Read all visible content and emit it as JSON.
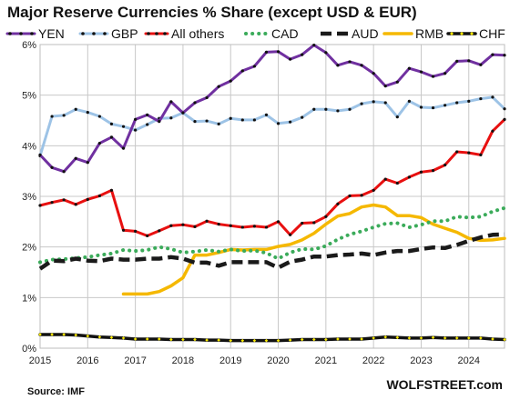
{
  "chart_data": {
    "type": "line",
    "title": "Major Reserve Currencies % Share (except USD & EUR)",
    "source": "Source: IMF",
    "brand": "WOLFSTREET.com",
    "xlabel": "",
    "ylabel": "",
    "xlim": [
      2015.0,
      2024.75
    ],
    "ylim": [
      0,
      6
    ],
    "yticks": [
      0,
      1,
      2,
      3,
      4,
      5,
      6
    ],
    "ytick_labels": [
      "0%",
      "1%",
      "2%",
      "3%",
      "4%",
      "5%",
      "6%"
    ],
    "xticks": [
      2015,
      2016,
      2017,
      2018,
      2019,
      2020,
      2021,
      2022,
      2023,
      2024
    ],
    "xtick_labels": [
      "2015",
      "2016",
      "2017",
      "2018",
      "2019",
      "2020",
      "2021",
      "2022",
      "2023",
      "2024"
    ],
    "grid": true,
    "legend_position": "top",
    "series": [
      {
        "name": "YEN",
        "color": "#7030a0",
        "dash": "solid",
        "marker": "dot",
        "x": [
          2015.0,
          2015.25,
          2015.5,
          2015.75,
          2016.0,
          2016.25,
          2016.5,
          2016.75,
          2017.0,
          2017.25,
          2017.5,
          2017.75,
          2018.0,
          2018.25,
          2018.5,
          2018.75,
          2019.0,
          2019.25,
          2019.5,
          2019.75,
          2020.0,
          2020.25,
          2020.5,
          2020.75,
          2021.0,
          2021.25,
          2021.5,
          2021.75,
          2022.0,
          2022.25,
          2022.5,
          2022.75,
          2023.0,
          2023.25,
          2023.5,
          2023.75,
          2024.0,
          2024.25,
          2024.5,
          2024.75
        ],
        "y": [
          3.82,
          3.57,
          3.49,
          3.75,
          3.67,
          4.05,
          4.17,
          3.95,
          4.52,
          4.61,
          4.48,
          4.87,
          4.65,
          4.85,
          4.95,
          5.17,
          5.28,
          5.48,
          5.57,
          5.85,
          5.86,
          5.71,
          5.8,
          5.99,
          5.84,
          5.59,
          5.66,
          5.59,
          5.43,
          5.18,
          5.26,
          5.53,
          5.46,
          5.37,
          5.43,
          5.67,
          5.68,
          5.6,
          5.8,
          5.79
        ]
      },
      {
        "name": "GBP",
        "color": "#9dc3e6",
        "dash": "solid",
        "marker": "dot",
        "x": [
          2015.0,
          2015.25,
          2015.5,
          2015.75,
          2016.0,
          2016.25,
          2016.5,
          2016.75,
          2017.0,
          2017.25,
          2017.5,
          2017.75,
          2018.0,
          2018.25,
          2018.5,
          2018.75,
          2019.0,
          2019.25,
          2019.5,
          2019.75,
          2020.0,
          2020.25,
          2020.5,
          2020.75,
          2021.0,
          2021.25,
          2021.5,
          2021.75,
          2022.0,
          2022.25,
          2022.5,
          2022.75,
          2023.0,
          2023.25,
          2023.5,
          2023.75,
          2024.0,
          2024.25,
          2024.5,
          2024.75
        ],
        "y": [
          3.8,
          4.58,
          4.6,
          4.72,
          4.66,
          4.58,
          4.43,
          4.38,
          4.31,
          4.42,
          4.54,
          4.55,
          4.65,
          4.48,
          4.49,
          4.43,
          4.54,
          4.51,
          4.51,
          4.61,
          4.44,
          4.47,
          4.56,
          4.72,
          4.72,
          4.69,
          4.72,
          4.83,
          4.87,
          4.85,
          4.57,
          4.88,
          4.76,
          4.75,
          4.8,
          4.85,
          4.88,
          4.93,
          4.96,
          4.73
        ]
      },
      {
        "name": "All others",
        "color": "#e81010",
        "dash": "solid",
        "marker": "dot",
        "x": [
          2015.0,
          2015.25,
          2015.5,
          2015.75,
          2016.0,
          2016.25,
          2016.5,
          2016.75,
          2017.0,
          2017.25,
          2017.5,
          2017.75,
          2018.0,
          2018.25,
          2018.5,
          2018.75,
          2019.0,
          2019.25,
          2019.5,
          2019.75,
          2020.0,
          2020.25,
          2020.5,
          2020.75,
          2021.0,
          2021.25,
          2021.5,
          2021.75,
          2022.0,
          2022.25,
          2022.5,
          2022.75,
          2023.0,
          2023.25,
          2023.5,
          2023.75,
          2024.0,
          2024.25,
          2024.5,
          2024.75
        ],
        "y": [
          2.82,
          2.88,
          2.93,
          2.84,
          2.94,
          3.01,
          3.12,
          2.33,
          2.31,
          2.22,
          2.32,
          2.42,
          2.44,
          2.4,
          2.51,
          2.45,
          2.42,
          2.39,
          2.41,
          2.39,
          2.5,
          2.24,
          2.47,
          2.48,
          2.6,
          2.85,
          3.01,
          3.02,
          3.12,
          3.34,
          3.26,
          3.38,
          3.48,
          3.51,
          3.62,
          3.88,
          3.86,
          3.82,
          4.29,
          4.52
        ]
      },
      {
        "name": "CAD",
        "color": "#3bab5a",
        "dash": "dotted",
        "marker": "none",
        "x": [
          2015.0,
          2015.25,
          2015.5,
          2015.75,
          2016.0,
          2016.25,
          2016.5,
          2016.75,
          2017.0,
          2017.25,
          2017.5,
          2017.75,
          2018.0,
          2018.25,
          2018.5,
          2018.75,
          2019.0,
          2019.25,
          2019.5,
          2019.75,
          2020.0,
          2020.25,
          2020.5,
          2020.75,
          2021.0,
          2021.25,
          2021.5,
          2021.75,
          2022.0,
          2022.25,
          2022.5,
          2022.75,
          2023.0,
          2023.25,
          2023.5,
          2023.75,
          2024.0,
          2024.25,
          2024.5,
          2024.75
        ],
        "y": [
          1.7,
          1.75,
          1.76,
          1.78,
          1.8,
          1.84,
          1.87,
          1.94,
          1.92,
          1.94,
          2.0,
          1.96,
          1.89,
          1.91,
          1.94,
          1.91,
          1.95,
          1.92,
          1.93,
          1.88,
          1.77,
          1.89,
          1.96,
          1.95,
          2.02,
          2.15,
          2.25,
          2.31,
          2.39,
          2.46,
          2.47,
          2.39,
          2.44,
          2.51,
          2.51,
          2.6,
          2.58,
          2.6,
          2.7,
          2.77
        ]
      },
      {
        "name": "AUD",
        "color": "#1a1a1a",
        "dash": "dashed",
        "marker": "none",
        "x": [
          2015.0,
          2015.25,
          2015.5,
          2015.75,
          2016.0,
          2016.25,
          2016.5,
          2016.75,
          2017.0,
          2017.25,
          2017.5,
          2017.75,
          2018.0,
          2018.25,
          2018.5,
          2018.75,
          2019.0,
          2019.25,
          2019.5,
          2019.75,
          2020.0,
          2020.25,
          2020.5,
          2020.75,
          2021.0,
          2021.25,
          2021.5,
          2021.75,
          2022.0,
          2022.25,
          2022.5,
          2022.75,
          2023.0,
          2023.25,
          2023.5,
          2023.75,
          2024.0,
          2024.25,
          2024.5,
          2024.75
        ],
        "y": [
          1.57,
          1.73,
          1.72,
          1.77,
          1.73,
          1.72,
          1.77,
          1.75,
          1.75,
          1.77,
          1.77,
          1.8,
          1.77,
          1.69,
          1.69,
          1.63,
          1.7,
          1.7,
          1.7,
          1.7,
          1.59,
          1.71,
          1.75,
          1.81,
          1.81,
          1.84,
          1.85,
          1.87,
          1.84,
          1.89,
          1.92,
          1.92,
          1.96,
          1.99,
          1.98,
          2.04,
          2.12,
          2.19,
          2.24,
          2.25
        ]
      },
      {
        "name": "RMB",
        "color": "#f5b800",
        "dash": "solid",
        "marker": "none",
        "x": [
          2016.75,
          2017.0,
          2017.25,
          2017.5,
          2017.75,
          2018.0,
          2018.25,
          2018.5,
          2018.75,
          2019.0,
          2019.25,
          2019.5,
          2019.75,
          2020.0,
          2020.25,
          2020.5,
          2020.75,
          2021.0,
          2021.25,
          2021.5,
          2021.75,
          2022.0,
          2022.25,
          2022.5,
          2022.75,
          2023.0,
          2023.25,
          2023.5,
          2023.75,
          2024.0,
          2024.25,
          2024.5,
          2024.75
        ],
        "y": [
          1.07,
          1.07,
          1.07,
          1.12,
          1.23,
          1.39,
          1.84,
          1.84,
          1.89,
          1.95,
          1.94,
          1.95,
          1.95,
          2.01,
          2.05,
          2.14,
          2.27,
          2.45,
          2.61,
          2.66,
          2.79,
          2.83,
          2.79,
          2.62,
          2.62,
          2.58,
          2.45,
          2.37,
          2.29,
          2.17,
          2.13,
          2.14,
          2.17
        ]
      },
      {
        "name": "CHF",
        "color": "#111111",
        "dash": "solid",
        "marker": "diamond-yellow",
        "x": [
          2015.0,
          2015.25,
          2015.5,
          2015.75,
          2016.0,
          2016.25,
          2016.5,
          2016.75,
          2017.0,
          2017.25,
          2017.5,
          2017.75,
          2018.0,
          2018.25,
          2018.5,
          2018.75,
          2019.0,
          2019.25,
          2019.5,
          2019.75,
          2020.0,
          2020.25,
          2020.5,
          2020.75,
          2021.0,
          2021.25,
          2021.5,
          2021.75,
          2022.0,
          2022.25,
          2022.5,
          2022.75,
          2023.0,
          2023.25,
          2023.5,
          2023.75,
          2024.0,
          2024.25,
          2024.5,
          2024.75
        ],
        "y": [
          0.27,
          0.27,
          0.27,
          0.26,
          0.24,
          0.22,
          0.21,
          0.2,
          0.18,
          0.18,
          0.18,
          0.17,
          0.17,
          0.17,
          0.16,
          0.16,
          0.15,
          0.15,
          0.15,
          0.15,
          0.15,
          0.16,
          0.17,
          0.17,
          0.17,
          0.18,
          0.18,
          0.18,
          0.2,
          0.22,
          0.21,
          0.2,
          0.2,
          0.21,
          0.2,
          0.2,
          0.2,
          0.2,
          0.18,
          0.17
        ]
      }
    ]
  }
}
